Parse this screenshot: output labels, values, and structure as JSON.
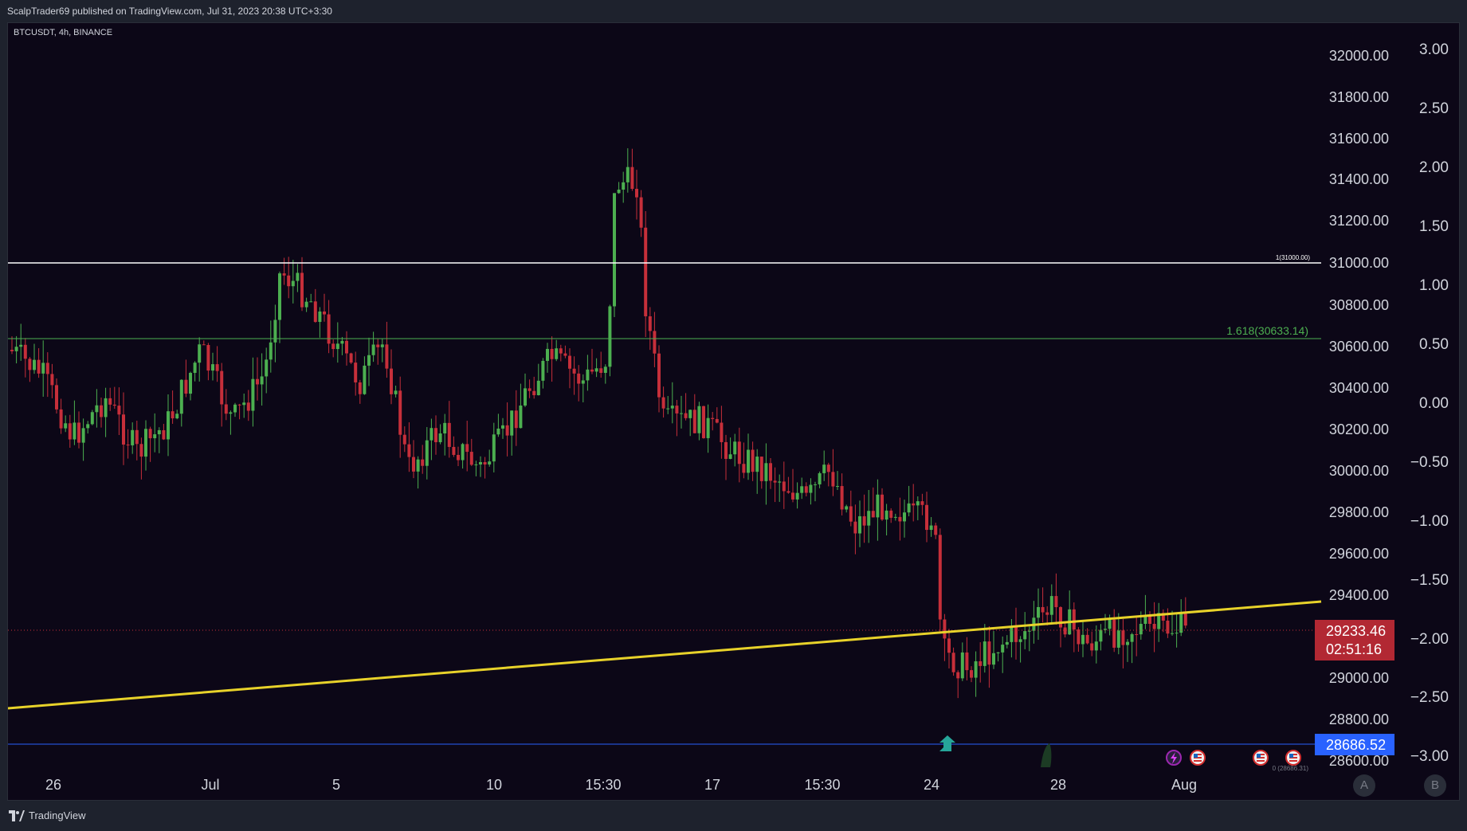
{
  "header": {
    "publish_info": "ScalpTrader69 published on TradingView.com, Jul 31, 2023 20:38 UTC+3:30"
  },
  "chart": {
    "symbol_info": "BTCUSDT, 4h, BINANCE",
    "price_axis_labels": [
      "32000.00",
      "31800.00",
      "31600.00",
      "31400.00",
      "31200.00",
      "31000.00",
      "30800.00",
      "30600.00",
      "30400.00",
      "30200.00",
      "30000.00",
      "29800.00",
      "29600.00",
      "29400.00",
      "29000.00",
      "28800.00",
      "28600.00"
    ],
    "right_axis_labels": [
      "3.00",
      "2.50",
      "2.00",
      "1.50",
      "1.00",
      "0.50",
      "0.00",
      "−0.50",
      "−1.00",
      "−1.50",
      "−2.00",
      "−2.50",
      "−3.00"
    ],
    "time_axis_labels": [
      "26",
      "Jul",
      "5",
      "10",
      "15:30",
      "17",
      "15:30",
      "24",
      "28",
      "Aug"
    ],
    "last_price": "29233.46",
    "countdown": "02:51:16",
    "horizontal_line_price": "28686.52",
    "fib_level_1_label": "1(31000.00)",
    "fib_level_1618_label": "1.618(30633.14)",
    "fib_bottom_label": "0 (28686.31)",
    "scale_buttons": [
      "A",
      "B"
    ],
    "colors": {
      "up": "#4caf50",
      "down": "#c62f3a",
      "trendline": "#e8d22a",
      "fib_1": "#ffffff",
      "fib_1618": "#4caf50",
      "blue_line": "#2962ff",
      "last_price_bg": "#b22833"
    }
  },
  "footer": {
    "brand": "TradingView"
  },
  "icons": [
    "flash-icon",
    "us-flag-icon",
    "arrow-up-icon",
    "tradingview-logo-icon"
  ]
}
